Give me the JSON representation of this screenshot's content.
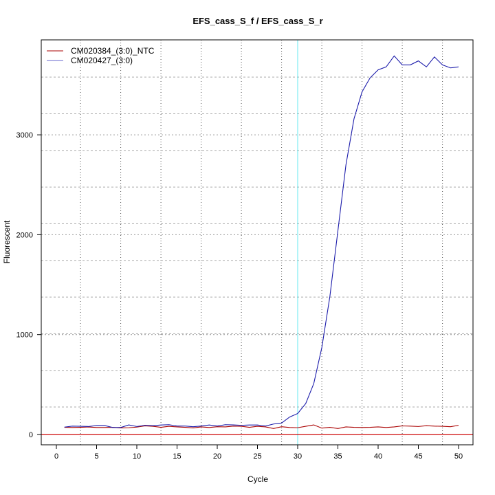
{
  "chart_data": {
    "type": "line",
    "title": "EFS_cass_S_f / EFS_cass_S_r",
    "xlabel": "Cycle",
    "ylabel": "Fluorescent",
    "xlim": [
      -2,
      52
    ],
    "ylim": [
      -100,
      3940
    ],
    "xticks": [
      0,
      5,
      10,
      15,
      20,
      25,
      30,
      35,
      40,
      45,
      50
    ],
    "yticks": [
      0,
      1000,
      2000,
      3000
    ],
    "grid": true,
    "vgrid": [
      3,
      8,
      13,
      18,
      23,
      28,
      33,
      38,
      43,
      48
    ],
    "hgrid": [
      275,
      642,
      1009,
      1376,
      1743,
      2110,
      2477,
      2844,
      3211,
      3578
    ],
    "threshold": 0,
    "marker_cycle": 30,
    "legend_position": "top-left",
    "x": [
      1,
      2,
      3,
      4,
      5,
      6,
      7,
      8,
      9,
      10,
      11,
      12,
      13,
      14,
      15,
      16,
      17,
      18,
      19,
      20,
      21,
      22,
      23,
      24,
      25,
      26,
      27,
      28,
      29,
      30,
      31,
      32,
      33,
      34,
      35,
      36,
      37,
      38,
      39,
      40,
      41,
      42,
      43,
      44,
      45,
      46,
      47,
      48,
      49,
      50
    ],
    "series": [
      {
        "name": "CM020384_(3:0)_NTC",
        "color": "#aa0000",
        "values": [
          72,
          70,
          72,
          75,
          70,
          70,
          72,
          66,
          68,
          74,
          86,
          82,
          72,
          82,
          76,
          72,
          66,
          76,
          70,
          78,
          76,
          84,
          82,
          72,
          82,
          76,
          60,
          78,
          70,
          68,
          82,
          96,
          64,
          72,
          60,
          76,
          72,
          70,
          72,
          76,
          70,
          76,
          86,
          84,
          80,
          88,
          84,
          82,
          78,
          92
        ]
      },
      {
        "name": "CM020427_(3:0)",
        "color": "#1a1aaa",
        "values": [
          74,
          84,
          82,
          80,
          90,
          90,
          70,
          70,
          96,
          80,
          92,
          88,
          95,
          98,
          85,
          85,
          78,
          85,
          95,
          85,
          98,
          96,
          92,
          95,
          95,
          85,
          105,
          115,
          175,
          210,
          310,
          510,
          870,
          1380,
          2040,
          2700,
          3160,
          3430,
          3570,
          3650,
          3680,
          3790,
          3700,
          3700,
          3740,
          3680,
          3780,
          3700,
          3670,
          3680
        ]
      }
    ]
  }
}
